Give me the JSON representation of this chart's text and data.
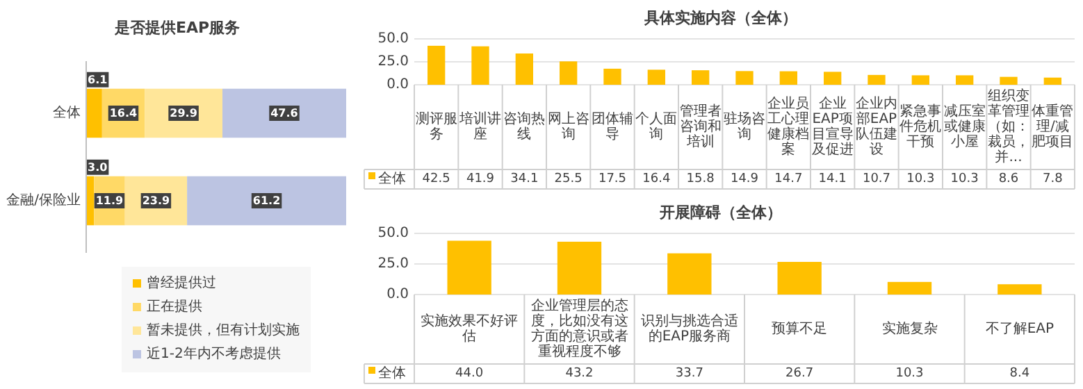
{
  "chart_data": [
    {
      "type": "bar",
      "orientation": "horizontal",
      "stacked": true,
      "title": "是否提供EAP服务",
      "categories": [
        "全体",
        "金融/保险业"
      ],
      "legend": "bottom",
      "series": [
        {
          "name": "曾经提供过",
          "color": "#ffc000",
          "values": [
            6.1,
            3.0
          ],
          "value_labels": [
            "6.1",
            "3.0"
          ]
        },
        {
          "name": "正在提供",
          "color": "#ffd966",
          "values": [
            16.4,
            11.9
          ],
          "value_labels": [
            "16.4",
            "11.9"
          ]
        },
        {
          "name": "暂未提供，但有计划实施",
          "color": "#ffe699",
          "values": [
            29.9,
            23.9
          ],
          "value_labels": [
            "29.9",
            "23.9"
          ]
        },
        {
          "name": "近1-2年内不考虑提供",
          "color": "#bcc4e2",
          "values": [
            47.6,
            61.2
          ],
          "value_labels": [
            "47.6",
            "61.2"
          ]
        }
      ]
    },
    {
      "type": "bar",
      "title": "具体实施内容（全体）",
      "categories": [
        "测评服务",
        "培训讲座",
        "咨询热线",
        "网上咨询",
        "团体辅导",
        "个人面询",
        "管理者咨询和培训",
        "驻场咨询",
        "企业员工心理健康档案",
        "企业EAP项目宣导及促进",
        "企业内部EAP队伍建设",
        "紧急事件危机干预",
        "减压室或健康小屋",
        "组织变革管理（如：裁员，并...",
        "体重管理/减肥项目"
      ],
      "ylim": [
        0,
        50
      ],
      "yticks": [
        {
          "value": 0,
          "label": "0.0"
        },
        {
          "value": 25,
          "label": "25.0"
        },
        {
          "value": 50,
          "label": "50.0"
        }
      ],
      "grid": "y",
      "legend": "bottom left",
      "series": [
        {
          "name": "全体",
          "color": "#ffc000",
          "values": [
            42.5,
            41.9,
            34.1,
            25.5,
            17.5,
            16.4,
            15.8,
            14.9,
            14.7,
            14.1,
            10.7,
            10.3,
            10.3,
            8.6,
            7.8
          ],
          "value_labels": [
            "42.5",
            "41.9",
            "34.1",
            "25.5",
            "17.5",
            "16.4",
            "15.8",
            "14.9",
            "14.7",
            "14.1",
            "10.7",
            "10.3",
            "10.3",
            "8.6",
            "7.8"
          ]
        }
      ]
    },
    {
      "type": "bar",
      "title": "开展障碍（全体）",
      "categories": [
        "实施效果不好评估",
        "企业管理层的态度，比如没有这方面的意识或者重视程度不够",
        "识别与挑选合适的EAP服务商",
        "预算不足",
        "实施复杂",
        "不了解EAP"
      ],
      "ylim": [
        0,
        50
      ],
      "yticks": [
        {
          "value": 0,
          "label": "0.0"
        },
        {
          "value": 25,
          "label": "25.0"
        },
        {
          "value": 50,
          "label": "50.0"
        }
      ],
      "grid": "y",
      "legend": "bottom left",
      "series": [
        {
          "name": "全体",
          "color": "#ffc000",
          "values": [
            44.0,
            43.2,
            33.7,
            26.7,
            10.3,
            8.4
          ],
          "value_labels": [
            "44.0",
            "43.2",
            "33.7",
            "26.7",
            "10.3",
            "8.4"
          ]
        }
      ]
    }
  ]
}
